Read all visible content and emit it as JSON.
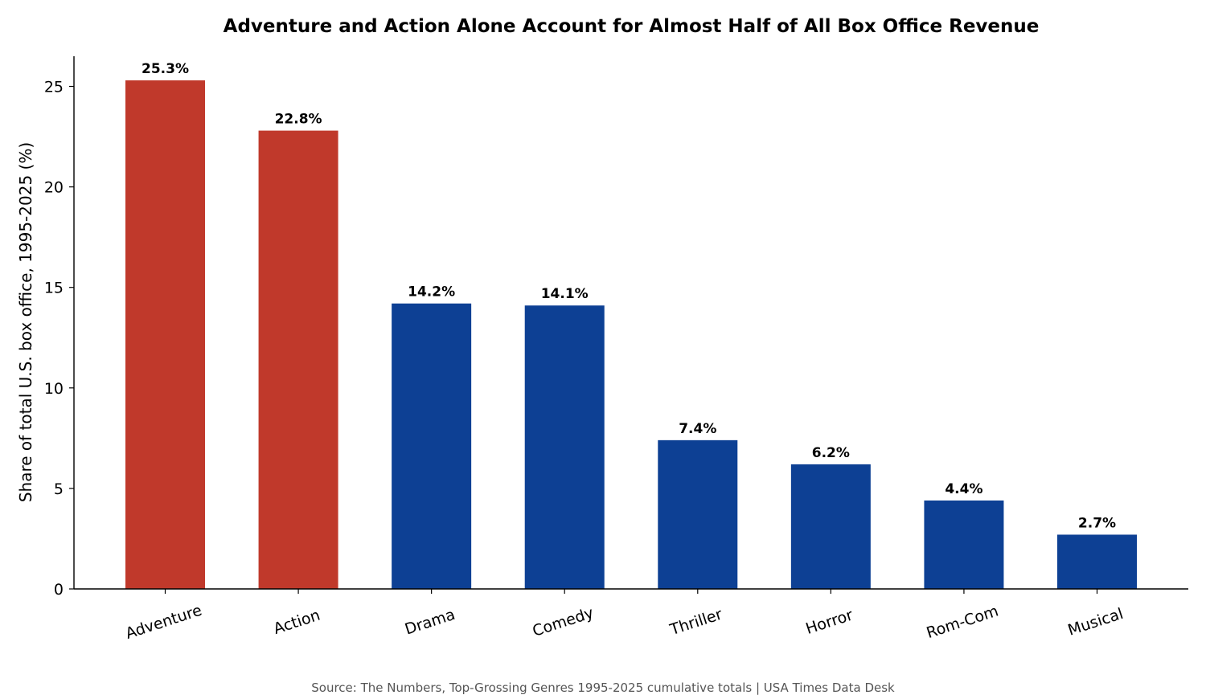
{
  "chart_data": {
    "type": "bar",
    "title": "Adventure and Action Alone Account for Almost Half of All Box Office Revenue",
    "xlabel": "",
    "ylabel": "Share of total U.S. box office, 1995-2025 (%)",
    "categories": [
      "Adventure",
      "Action",
      "Drama",
      "Comedy",
      "Thriller",
      "Horror",
      "Rom-Com",
      "Musical"
    ],
    "values": [
      25.3,
      22.8,
      14.2,
      14.1,
      7.4,
      6.2,
      4.4,
      2.7
    ],
    "value_labels": [
      "25.3%",
      "22.8%",
      "14.2%",
      "14.1%",
      "7.4%",
      "6.2%",
      "4.4%",
      "2.7%"
    ],
    "highlighted": [
      true,
      true,
      false,
      false,
      false,
      false,
      false,
      false
    ],
    "colors": {
      "highlight": "#c0392b",
      "default": "#0d4094"
    },
    "ylim": [
      0,
      26.5
    ],
    "yticks": [
      0,
      5,
      10,
      15,
      20,
      25
    ],
    "grid": false,
    "source": "Source: The Numbers, Top-Grossing Genres 1995-2025 cumulative totals | USA Times Data Desk"
  }
}
